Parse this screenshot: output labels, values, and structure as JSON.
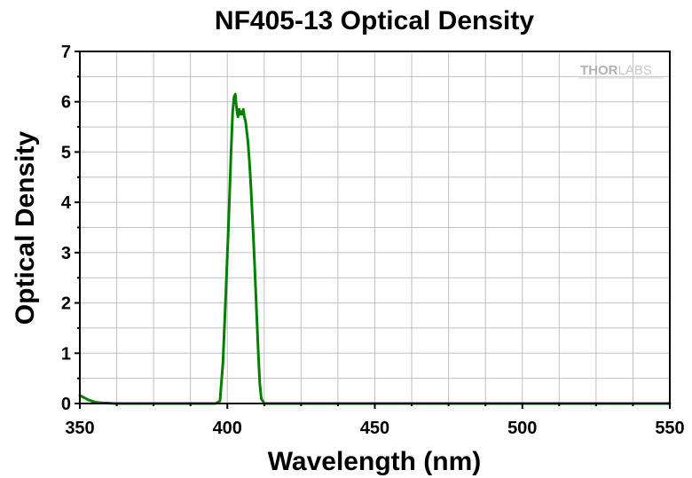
{
  "chart_data": {
    "type": "line",
    "title": "NF405-13 Optical Density",
    "xlabel": "Wavelength (nm)",
    "ylabel": "Optical Density",
    "xlim": [
      350,
      550
    ],
    "ylim": [
      0,
      7
    ],
    "xticks": [
      350,
      400,
      450,
      500,
      550
    ],
    "yticks": [
      0,
      1,
      2,
      3,
      4,
      5,
      6,
      7
    ],
    "grid": true,
    "series": [
      {
        "color": "#008000",
        "x": [
          350,
          351,
          352,
          353,
          354,
          355,
          356,
          358,
          362,
          370,
          380,
          390,
          396,
          397.5,
          398.5,
          399.5,
          400.5,
          401.2,
          401.8,
          402.3,
          402.7,
          403.0,
          403.3,
          403.6,
          404.0,
          404.3,
          404.6,
          405.0,
          405.4,
          405.8,
          406.2,
          406.6,
          407.0,
          407.5,
          408.0,
          408.5,
          409.0,
          409.5,
          410.0,
          410.5,
          411.0,
          411.5,
          412.5,
          415,
          420,
          450,
          500,
          550
        ],
        "y": [
          0.16,
          0.13,
          0.1,
          0.07,
          0.05,
          0.03,
          0.02,
          0.01,
          0.0,
          0.0,
          0.0,
          0.0,
          0.0,
          0.05,
          0.8,
          2.2,
          3.7,
          4.9,
          5.8,
          6.1,
          6.15,
          5.95,
          5.8,
          5.7,
          5.85,
          5.75,
          5.8,
          5.75,
          5.85,
          5.7,
          5.6,
          5.4,
          5.2,
          4.8,
          4.3,
          3.7,
          3.1,
          2.4,
          1.7,
          1.0,
          0.4,
          0.1,
          0.0,
          0.0,
          0.0,
          0.0,
          0.0,
          0.0
        ]
      }
    ]
  },
  "watermark": {
    "bold": "THOR",
    "light": "LABS"
  },
  "colors": {
    "grid": "#c0c0c0",
    "axes": "#000000",
    "line": "#008000"
  }
}
